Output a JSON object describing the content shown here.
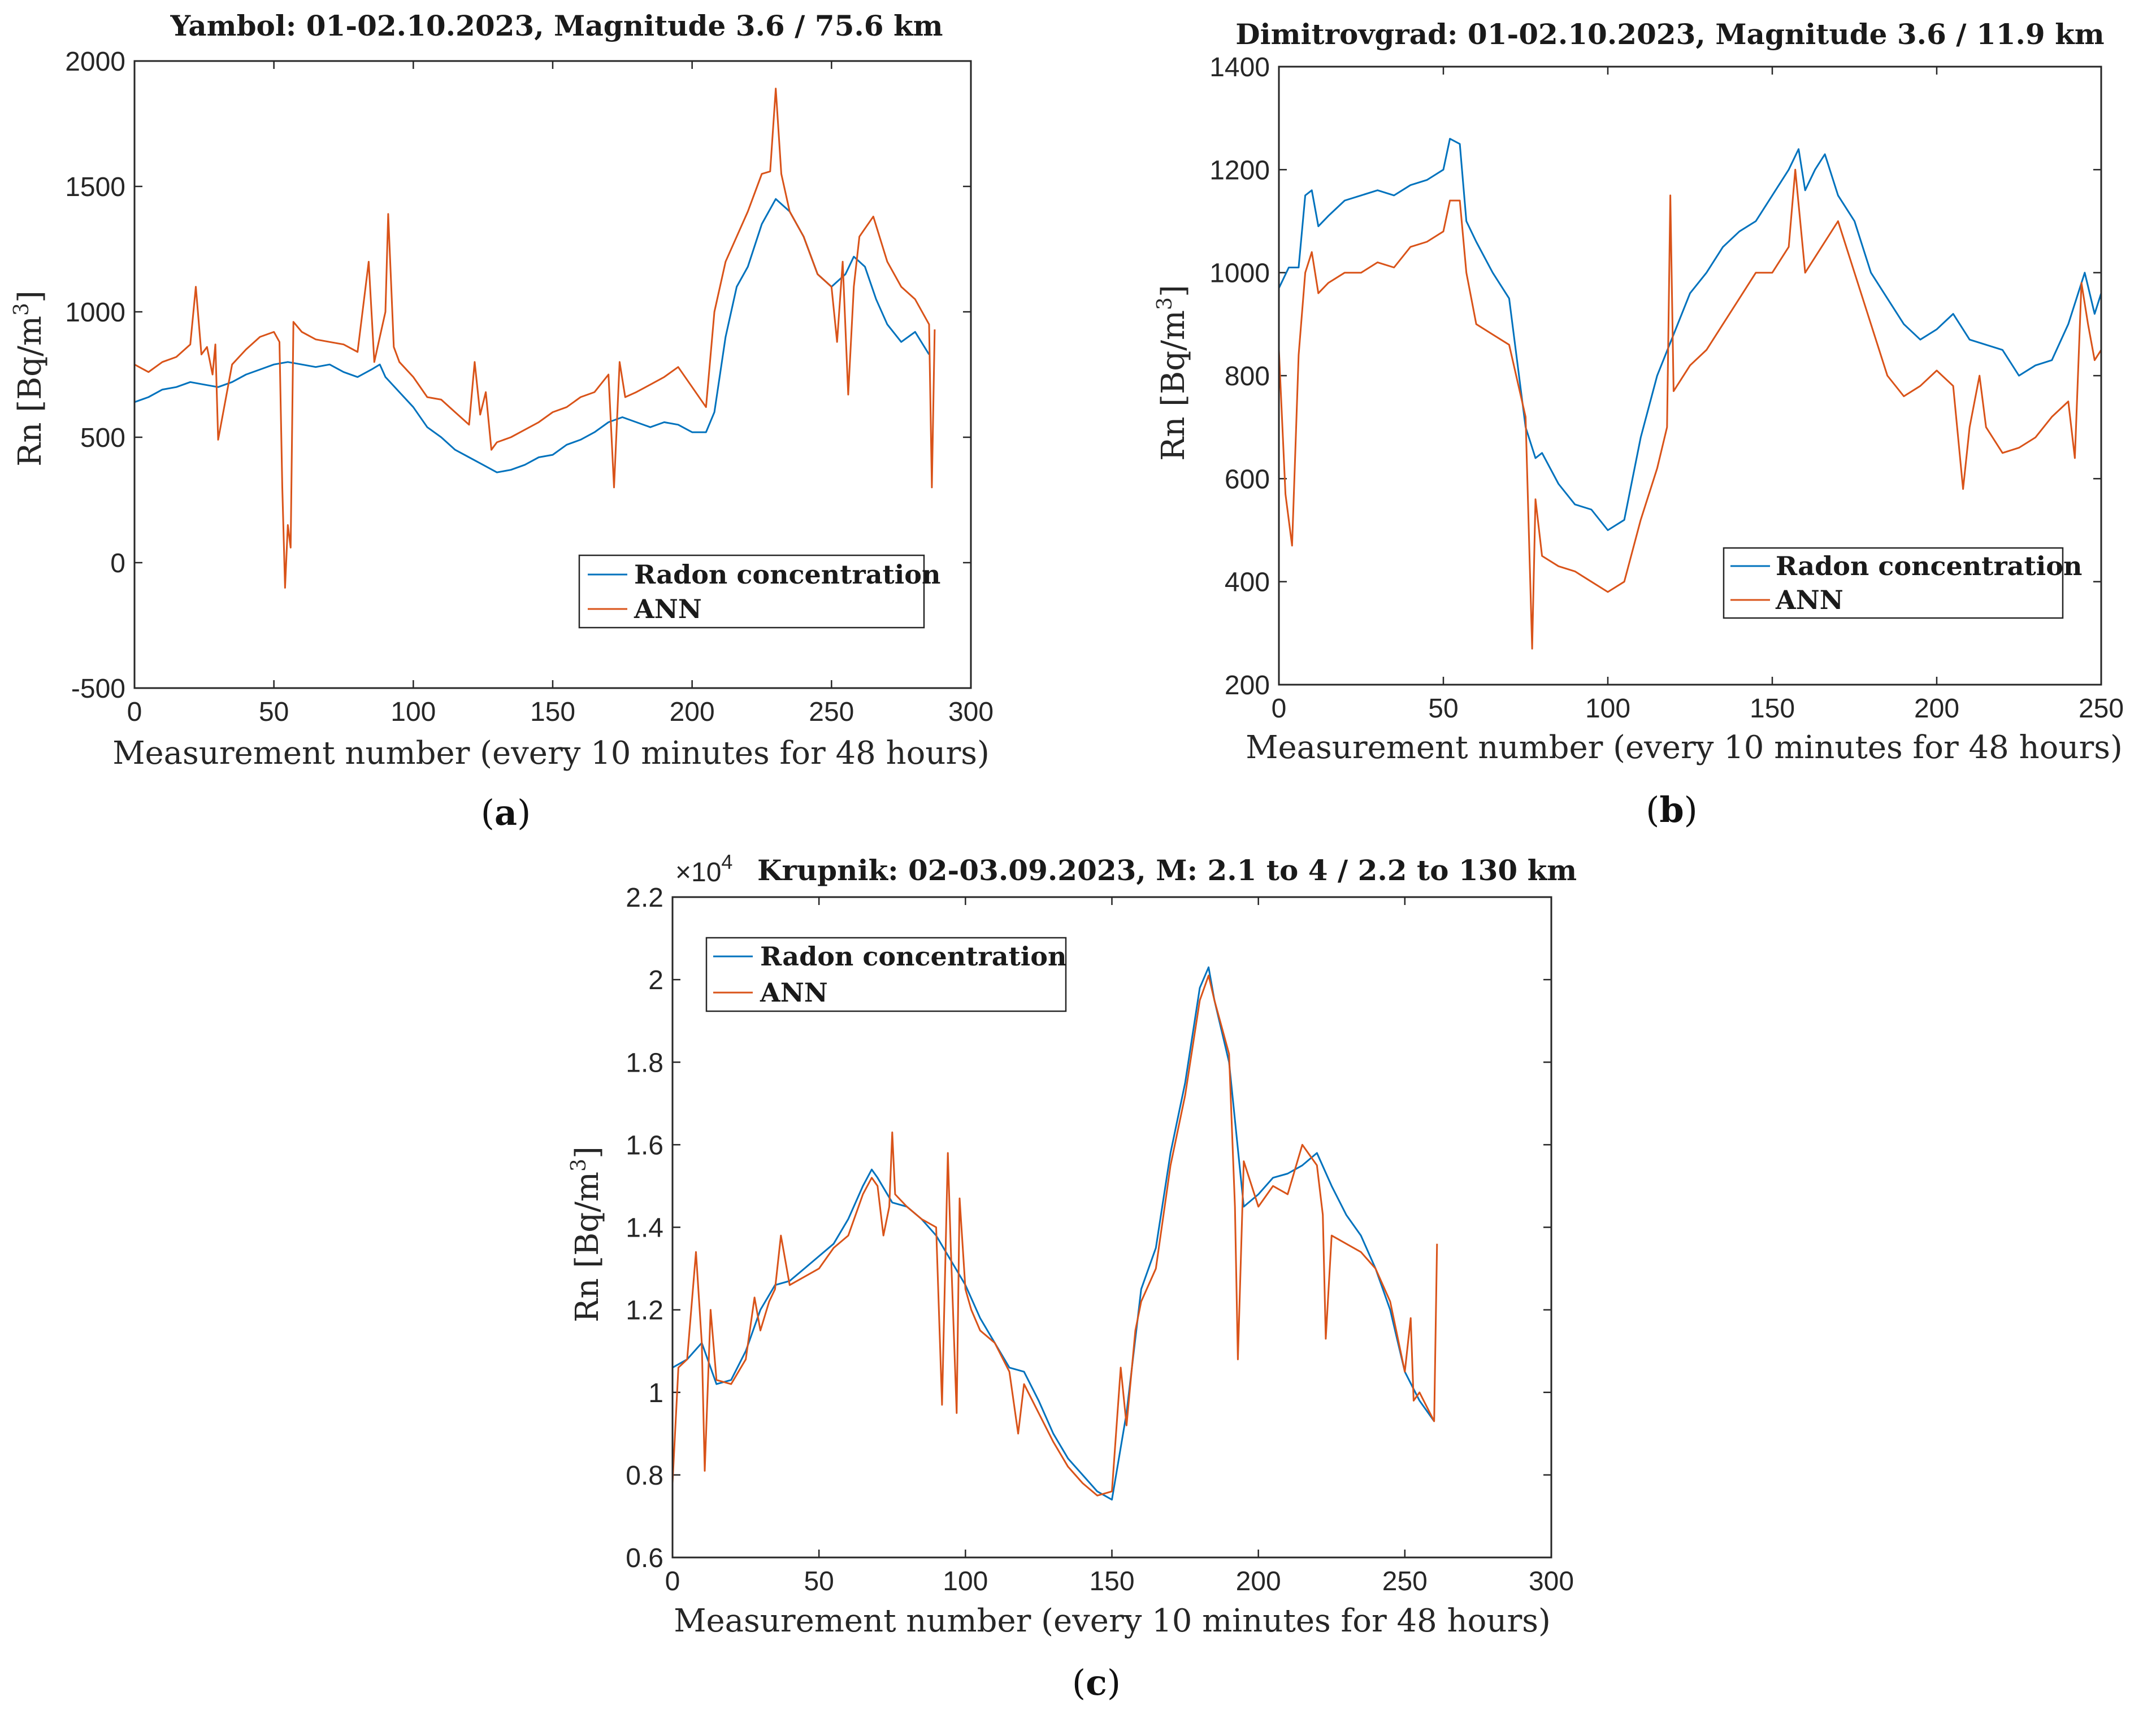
{
  "figure": {
    "colors": {
      "radon": "#0072BD",
      "ann": "#D95319",
      "axis": "#262626"
    },
    "panels": [
      {
        "id": "a",
        "label": "a",
        "label_open": "(",
        "label_close": ")"
      },
      {
        "id": "b",
        "label": "b",
        "label_open": "(",
        "label_close": ")"
      },
      {
        "id": "c",
        "label": "c",
        "label_open": "(",
        "label_close": ")"
      }
    ]
  },
  "chart_data": [
    {
      "id": "a",
      "type": "line",
      "title": "Yambol: 01-02.10.2023, Magnitude 3.6 / 75.6 km",
      "xlabel": "Measurement number (every 10 minutes for 48 hours)",
      "ylabel_main": "Rn [Bq/m",
      "ylabel_sup": "3",
      "ylabel_end": "]",
      "xlim": [
        0,
        300
      ],
      "ylim": [
        -500,
        2000
      ],
      "xticks": [
        0,
        50,
        100,
        150,
        200,
        250,
        300
      ],
      "xtick_labels": [
        "0",
        "50",
        "100",
        "150",
        "200",
        "250",
        "300"
      ],
      "yticks": [
        -500,
        0,
        500,
        1000,
        1500,
        2000
      ],
      "ytick_labels": [
        "-500",
        "0",
        "500",
        "1000",
        "1500",
        "2000"
      ],
      "legend": [
        "Radon concentration",
        "ANN"
      ],
      "legend_position": "bottom-right",
      "series": [
        {
          "name": "Radon concentration",
          "x": [
            0,
            5,
            10,
            15,
            20,
            25,
            30,
            35,
            40,
            45,
            50,
            55,
            60,
            65,
            70,
            75,
            80,
            85,
            88,
            90,
            95,
            100,
            105,
            110,
            115,
            120,
            125,
            130,
            135,
            140,
            145,
            150,
            155,
            160,
            165,
            170,
            175,
            180,
            185,
            190,
            195,
            200,
            205,
            208,
            212,
            216,
            220,
            225,
            230,
            235,
            240,
            245,
            250,
            255,
            258,
            262,
            266,
            270,
            275,
            280,
            285
          ],
          "y": [
            640,
            660,
            690,
            700,
            720,
            710,
            700,
            720,
            750,
            770,
            790,
            800,
            790,
            780,
            790,
            760,
            740,
            770,
            790,
            740,
            680,
            620,
            540,
            500,
            450,
            420,
            390,
            360,
            370,
            390,
            420,
            430,
            470,
            490,
            520,
            560,
            580,
            560,
            540,
            560,
            550,
            520,
            520,
            600,
            900,
            1100,
            1180,
            1350,
            1450,
            1400,
            1300,
            1150,
            1100,
            1150,
            1220,
            1180,
            1050,
            950,
            880,
            920,
            830
          ]
        },
        {
          "name": "ANN",
          "x": [
            0,
            5,
            10,
            15,
            20,
            22,
            24,
            26,
            28,
            29,
            30,
            35,
            40,
            45,
            50,
            52,
            53,
            54,
            55,
            56,
            57,
            60,
            65,
            70,
            75,
            80,
            84,
            86,
            88,
            90,
            91,
            93,
            95,
            100,
            105,
            110,
            115,
            120,
            122,
            124,
            126,
            128,
            130,
            135,
            140,
            145,
            150,
            155,
            160,
            165,
            170,
            172,
            174,
            176,
            180,
            185,
            190,
            195,
            200,
            205,
            208,
            212,
            216,
            220,
            225,
            228,
            230,
            232,
            235,
            240,
            245,
            250,
            252,
            254,
            256,
            258,
            260,
            265,
            270,
            275,
            280,
            285,
            286,
            287
          ],
          "y": [
            790,
            760,
            800,
            820,
            870,
            1100,
            830,
            860,
            750,
            870,
            490,
            790,
            850,
            900,
            920,
            880,
            300,
            -100,
            150,
            60,
            960,
            920,
            890,
            880,
            870,
            840,
            1200,
            800,
            900,
            1000,
            1390,
            860,
            800,
            740,
            660,
            650,
            600,
            550,
            800,
            590,
            680,
            450,
            480,
            500,
            530,
            560,
            600,
            620,
            660,
            680,
            750,
            300,
            800,
            660,
            680,
            710,
            740,
            780,
            700,
            620,
            1000,
            1200,
            1300,
            1400,
            1550,
            1560,
            1890,
            1550,
            1400,
            1300,
            1150,
            1100,
            880,
            1200,
            670,
            1100,
            1300,
            1380,
            1200,
            1100,
            1050,
            950,
            300,
            930
          ]
        }
      ]
    },
    {
      "id": "b",
      "type": "line",
      "title": "Dimitrovgrad: 01-02.10.2023, Magnitude 3.6 / 11.9 km",
      "xlabel": "Measurement number (every 10 minutes for 48 hours)",
      "ylabel_main": "Rn [Bq/m",
      "ylabel_sup": "3",
      "ylabel_end": "]",
      "xlim": [
        0,
        250
      ],
      "ylim": [
        200,
        1400
      ],
      "xticks": [
        0,
        50,
        100,
        150,
        200,
        250
      ],
      "xtick_labels": [
        "0",
        "50",
        "100",
        "150",
        "200",
        "250"
      ],
      "yticks": [
        200,
        400,
        600,
        800,
        1000,
        1200,
        1400
      ],
      "ytick_labels": [
        "200",
        "400",
        "600",
        "800",
        "1000",
        "1200",
        "1400"
      ],
      "legend": [
        "Radon concentration",
        "ANN"
      ],
      "legend_position": "bottom-right",
      "series": [
        {
          "name": "Radon concentration",
          "x": [
            0,
            3,
            6,
            8,
            10,
            12,
            15,
            20,
            25,
            30,
            35,
            40,
            45,
            50,
            52,
            55,
            57,
            60,
            65,
            70,
            75,
            78,
            80,
            85,
            90,
            95,
            100,
            105,
            110,
            115,
            120,
            125,
            130,
            135,
            140,
            145,
            150,
            155,
            158,
            160,
            163,
            166,
            170,
            175,
            180,
            185,
            190,
            195,
            200,
            205,
            210,
            215,
            220,
            225,
            230,
            235,
            240,
            245,
            248,
            250
          ],
          "y": [
            970,
            1010,
            1010,
            1150,
            1160,
            1090,
            1110,
            1140,
            1150,
            1160,
            1150,
            1170,
            1180,
            1200,
            1260,
            1250,
            1100,
            1060,
            1000,
            950,
            700,
            640,
            650,
            590,
            550,
            540,
            500,
            520,
            680,
            800,
            880,
            960,
            1000,
            1050,
            1080,
            1100,
            1150,
            1200,
            1240,
            1160,
            1200,
            1230,
            1150,
            1100,
            1000,
            950,
            900,
            870,
            890,
            920,
            870,
            860,
            850,
            800,
            820,
            830,
            900,
            1000,
            920,
            960
          ]
        },
        {
          "name": "ANN",
          "x": [
            0,
            2,
            4,
            6,
            8,
            10,
            12,
            15,
            20,
            25,
            30,
            35,
            40,
            45,
            50,
            52,
            55,
            57,
            60,
            65,
            70,
            75,
            77,
            78,
            80,
            85,
            90,
            95,
            100,
            105,
            110,
            115,
            118,
            119,
            120,
            125,
            130,
            135,
            140,
            145,
            150,
            155,
            157,
            160,
            165,
            170,
            175,
            180,
            185,
            190,
            195,
            200,
            205,
            208,
            210,
            213,
            215,
            220,
            225,
            230,
            235,
            240,
            242,
            244,
            246,
            248,
            250
          ],
          "y": [
            850,
            570,
            470,
            840,
            1000,
            1040,
            960,
            980,
            1000,
            1000,
            1020,
            1010,
            1050,
            1060,
            1080,
            1140,
            1140,
            1000,
            900,
            880,
            860,
            720,
            270,
            560,
            450,
            430,
            420,
            400,
            380,
            400,
            520,
            620,
            700,
            1150,
            770,
            820,
            850,
            900,
            950,
            1000,
            1000,
            1050,
            1200,
            1000,
            1050,
            1100,
            1000,
            900,
            800,
            760,
            780,
            810,
            780,
            580,
            700,
            800,
            700,
            650,
            660,
            680,
            720,
            750,
            640,
            980,
            900,
            830,
            850
          ]
        }
      ]
    },
    {
      "id": "c",
      "type": "line",
      "title": "Krupnik: 02-03.09.2023, M: 2.1 to 4 / 2.2 to 130 km",
      "sci_prefix": "×10",
      "sci_exponent": "4",
      "xlabel": "Measurement number (every 10 minutes for 48 hours)",
      "ylabel_main": "Rn [Bq/m",
      "ylabel_sup": "3",
      "ylabel_end": "]",
      "xlim": [
        0,
        300
      ],
      "ylim": [
        0.6,
        2.2
      ],
      "xticks": [
        0,
        50,
        100,
        150,
        200,
        250,
        300
      ],
      "xtick_labels": [
        "0",
        "50",
        "100",
        "150",
        "200",
        "250",
        "300"
      ],
      "yticks": [
        0.6,
        0.8,
        1,
        1.2,
        1.4,
        1.6,
        1.8,
        2,
        2.2
      ],
      "ytick_labels": [
        "0.6",
        "0.8",
        "1",
        "1.2",
        "1.4",
        "1.6",
        "1.8",
        "2",
        "2.2"
      ],
      "legend": [
        "Radon concentration",
        "ANN"
      ],
      "legend_position": "top-left",
      "series": [
        {
          "name": "Radon concentration",
          "x": [
            0,
            5,
            10,
            15,
            20,
            25,
            30,
            35,
            40,
            45,
            50,
            55,
            60,
            65,
            68,
            70,
            75,
            80,
            85,
            90,
            95,
            100,
            105,
            110,
            115,
            120,
            125,
            130,
            135,
            140,
            145,
            150,
            155,
            160,
            165,
            170,
            175,
            180,
            183,
            185,
            190,
            195,
            200,
            205,
            210,
            215,
            220,
            225,
            230,
            235,
            240,
            245,
            250,
            255,
            260
          ],
          "y": [
            1.06,
            1.08,
            1.12,
            1.02,
            1.03,
            1.1,
            1.2,
            1.26,
            1.27,
            1.3,
            1.33,
            1.36,
            1.42,
            1.5,
            1.54,
            1.52,
            1.46,
            1.45,
            1.42,
            1.38,
            1.32,
            1.26,
            1.18,
            1.12,
            1.06,
            1.05,
            0.98,
            0.9,
            0.84,
            0.8,
            0.76,
            0.74,
            0.95,
            1.25,
            1.35,
            1.58,
            1.75,
            1.98,
            2.03,
            1.95,
            1.8,
            1.45,
            1.48,
            1.52,
            1.53,
            1.55,
            1.58,
            1.5,
            1.43,
            1.38,
            1.3,
            1.2,
            1.05,
            0.98,
            0.93
          ]
        },
        {
          "name": "ANN",
          "x": [
            0,
            2,
            5,
            8,
            10,
            11,
            13,
            15,
            20,
            25,
            28,
            30,
            33,
            35,
            37,
            40,
            45,
            50,
            55,
            60,
            65,
            68,
            70,
            72,
            74,
            75,
            76,
            80,
            85,
            90,
            92,
            94,
            95,
            97,
            98,
            100,
            102,
            105,
            110,
            115,
            118,
            120,
            125,
            130,
            135,
            140,
            145,
            150,
            153,
            155,
            158,
            160,
            165,
            170,
            175,
            180,
            183,
            185,
            190,
            192,
            193,
            195,
            200,
            205,
            210,
            215,
            220,
            222,
            223,
            225,
            230,
            235,
            240,
            245,
            250,
            252,
            253,
            255,
            260,
            261
          ],
          "y": [
            0.78,
            1.06,
            1.08,
            1.34,
            1.12,
            0.81,
            1.2,
            1.03,
            1.02,
            1.08,
            1.23,
            1.15,
            1.22,
            1.25,
            1.38,
            1.26,
            1.28,
            1.3,
            1.35,
            1.38,
            1.48,
            1.52,
            1.5,
            1.38,
            1.45,
            1.63,
            1.48,
            1.45,
            1.42,
            1.4,
            0.97,
            1.58,
            1.35,
            0.95,
            1.47,
            1.25,
            1.2,
            1.15,
            1.12,
            1.05,
            0.9,
            1.02,
            0.95,
            0.88,
            0.82,
            0.78,
            0.75,
            0.76,
            1.06,
            0.92,
            1.15,
            1.22,
            1.3,
            1.55,
            1.72,
            1.95,
            2.01,
            1.95,
            1.82,
            1.45,
            1.08,
            1.56,
            1.45,
            1.5,
            1.48,
            1.6,
            1.55,
            1.43,
            1.13,
            1.38,
            1.36,
            1.34,
            1.3,
            1.22,
            1.05,
            1.18,
            0.98,
            1.0,
            0.93,
            1.36
          ]
        }
      ]
    }
  ]
}
